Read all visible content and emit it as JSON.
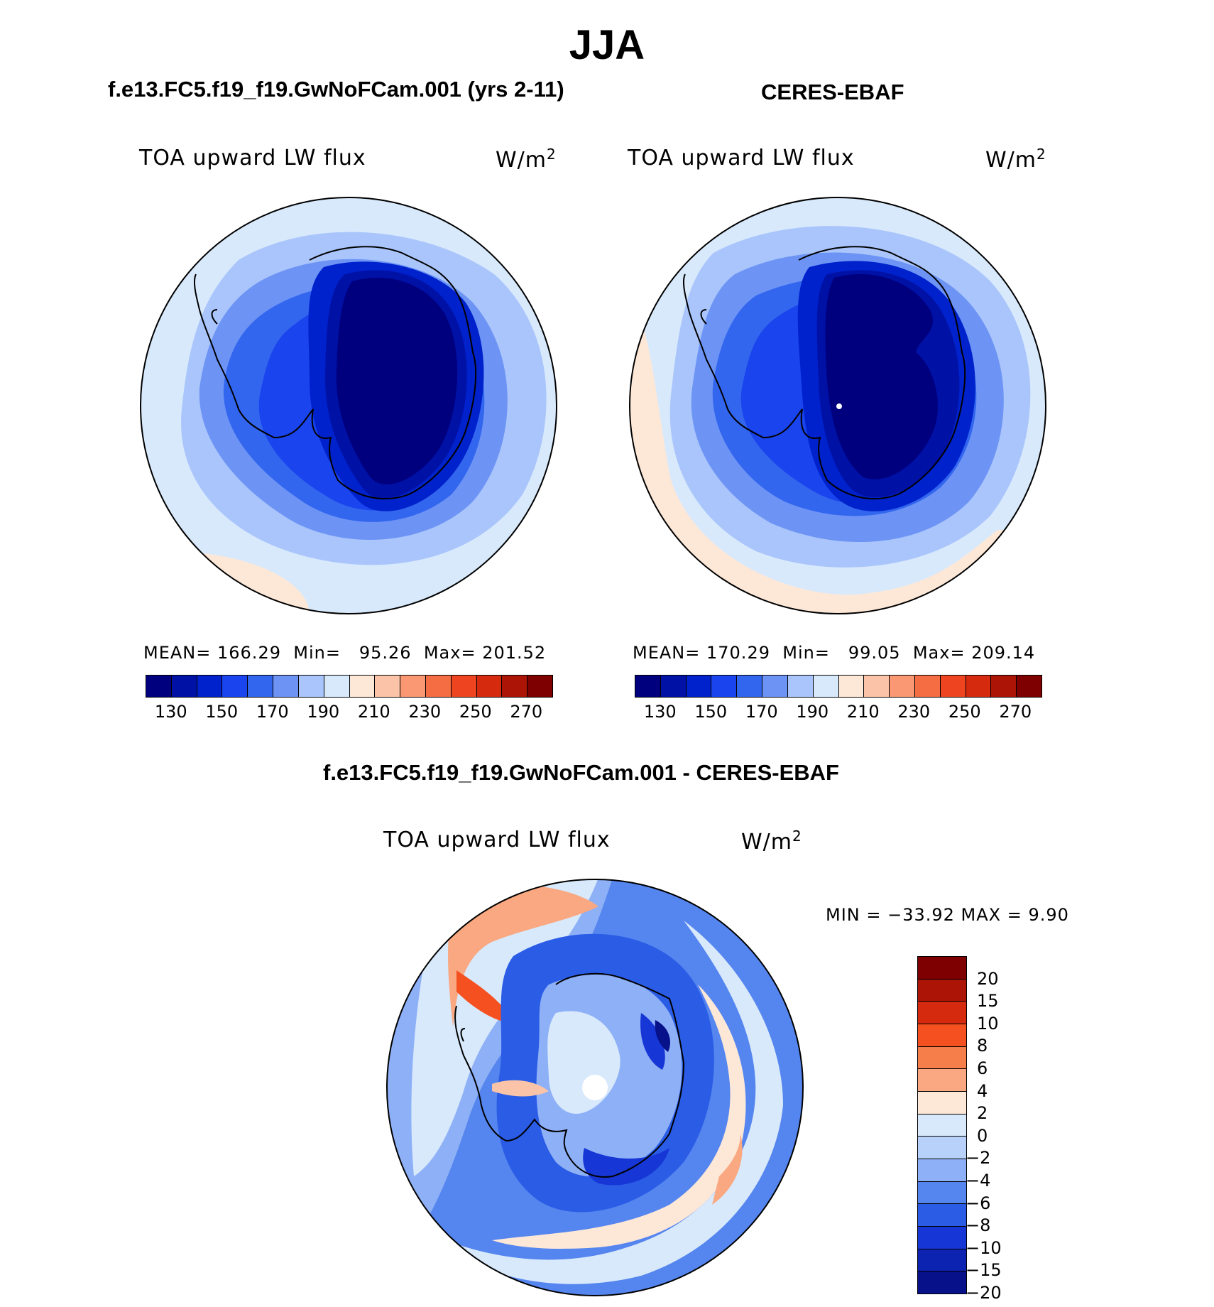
{
  "title": "JJA",
  "panels": [
    {
      "title": "f.e13.FC5.f19_f19.GwNoFCam.001 (yrs 2-11)",
      "variable": "TOA upward LW flux",
      "units": "W/m",
      "units_sup": "2",
      "stats": {
        "mean_label": "MEAN=",
        "mean": "166.29",
        "min_label": "Min=",
        "min": "95.26",
        "max_label": "Max=",
        "max": "201.52"
      }
    },
    {
      "title": "CERES-EBAF",
      "variable": "TOA upward LW flux",
      "units": "W/m",
      "units_sup": "2",
      "stats": {
        "mean_label": "MEAN=",
        "mean": "170.29",
        "min_label": "Min=",
        "min": "99.05",
        "max_label": "Max=",
        "max": "209.14"
      }
    }
  ],
  "abs_colorbar": {
    "colors": [
      "#00007f",
      "#0011a6",
      "#0022cc",
      "#1a44ee",
      "#3366ee",
      "#6d94f5",
      "#a9c5fb",
      "#d8e9fc",
      "#fde8d8",
      "#fbc4a8",
      "#f99872",
      "#f56d42",
      "#ee4520",
      "#d62a0e",
      "#ac1406",
      "#7f0000"
    ],
    "ticks": [
      "130",
      "150",
      "170",
      "190",
      "210",
      "230",
      "250",
      "270"
    ]
  },
  "diff_panel": {
    "title": "f.e13.FC5.f19_f19.GwNoFCam.001 - CERES-EBAF",
    "variable": "TOA upward LW flux",
    "units": "W/m",
    "units_sup": "2",
    "minmax": "MIN  =  −33.92  MAX  =      9.90",
    "colorbar": {
      "colors_top_to_bottom": [
        "#7f0000",
        "#ac1406",
        "#d62a0e",
        "#f5501f",
        "#f57e4a",
        "#f9a882",
        "#fde8d8",
        "#d8e9fc",
        "#b7d1fb",
        "#8eb0f6",
        "#5585ee",
        "#2a5ce6",
        "#1636d6",
        "#0c22b0",
        "#06118a"
      ],
      "ticks": [
        "20",
        "15",
        "10",
        "8",
        "6",
        "4",
        "2",
        "0",
        "−2",
        "−4",
        "−6",
        "−8",
        "−10",
        "−15",
        "−20"
      ]
    }
  }
}
